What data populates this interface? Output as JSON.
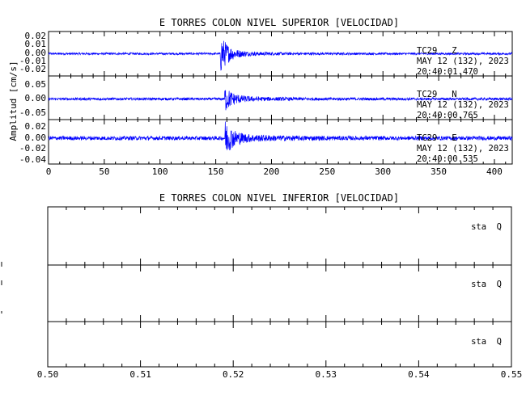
{
  "chart_data": [
    {
      "type": "line",
      "title": "E TORRES COLON NIVEL SUPERIOR [VELOCIDAD]",
      "ylabel": "Amplitud [cm/s]",
      "xlabel": "",
      "xlim": [
        0,
        416
      ],
      "x_ticks": [
        "0",
        "50",
        "100",
        "150",
        "200",
        "250",
        "300",
        "350",
        "400"
      ],
      "grid": false,
      "line_color": "#0000ff",
      "panels": [
        {
          "station": "TC29",
          "component": "Z",
          "date": "MAY 12 (132), 2023",
          "time": "20:40:01.470",
          "ylim": [
            -0.025,
            0.025
          ],
          "y_ticks": [
            "0.02",
            "0.01",
            "0.00",
            "-0.01",
            "-0.02"
          ],
          "event_onset_s": 154,
          "noise_amp": 0.0012,
          "event_peak": 0.021
        },
        {
          "station": "TC29",
          "component": "N",
          "date": "MAY 12 (132), 2023",
          "time": "20:40:00.765",
          "ylim": [
            -0.06,
            0.06
          ],
          "y_ticks": [
            "0.05",
            "0.00",
            "-0.05"
          ],
          "event_onset_s": 158,
          "noise_amp": 0.0035,
          "event_peak": 0.03
        },
        {
          "station": "TC29",
          "component": "E",
          "date": "MAY 12 (132), 2023",
          "time": "20:40:00.535",
          "ylim": [
            -0.045,
            0.045
          ],
          "y_ticks": [
            "0.02",
            "0.00",
            "-0.02",
            "-0.04"
          ],
          "event_onset_s": 158,
          "noise_amp": 0.004,
          "event_peak": 0.03
        }
      ]
    },
    {
      "type": "line",
      "title": "E TORRES COLON NIVEL INFERIOR [VELOCIDAD]",
      "xlabel": "",
      "xlim": [
        0.5,
        0.55
      ],
      "x_ticks": [
        "0.50",
        "0.51",
        "0.52",
        "0.53",
        "0.54",
        "0.55"
      ],
      "grid": false,
      "panels": [
        {
          "label": "sta  Q"
        },
        {
          "label": "sta  Q"
        },
        {
          "label": "sta  Q"
        }
      ]
    }
  ]
}
